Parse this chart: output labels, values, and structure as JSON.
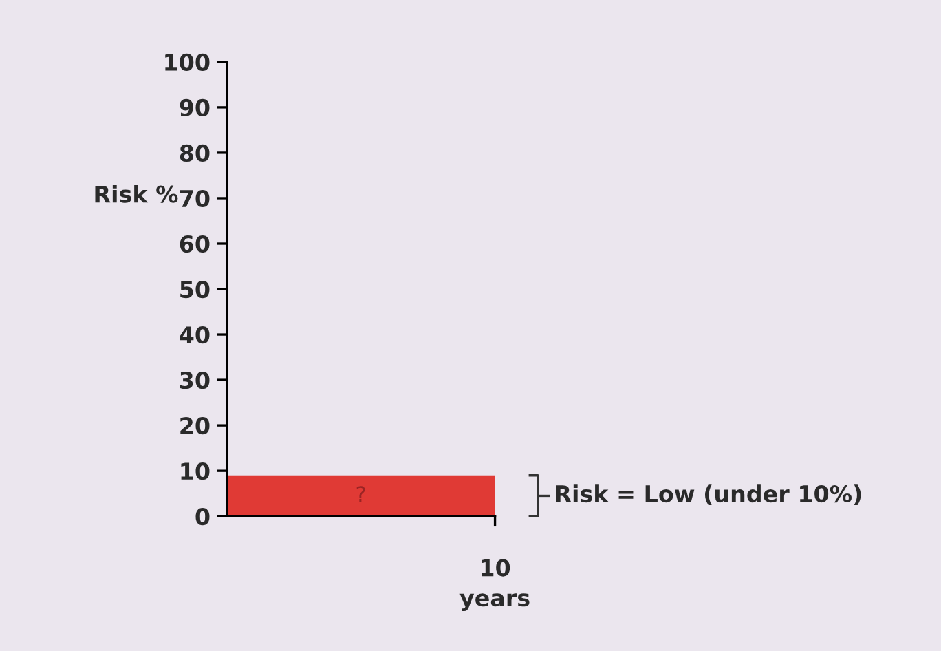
{
  "chart_data": {
    "type": "bar",
    "categories": [
      null
    ],
    "values": [
      9
    ],
    "color": "#e03a35",
    "value_labels": [
      "?"
    ],
    "ylim": [
      0,
      100
    ],
    "yticks": [
      0,
      10,
      20,
      30,
      40,
      50,
      60,
      70,
      80,
      90,
      100
    ],
    "xlabel": "years",
    "ylabel": "Risk %",
    "annotations": [
      "10",
      "Risk = Low (under 10%)"
    ],
    "grid": false,
    "legend": false
  }
}
